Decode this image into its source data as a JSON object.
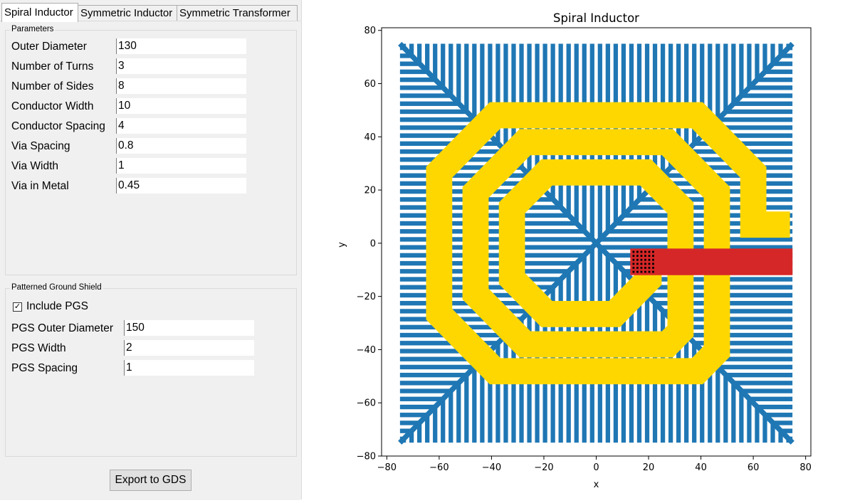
{
  "tabs": [
    {
      "label": "Spiral Inductor",
      "active": true
    },
    {
      "label": "Symmetric Inductor",
      "active": false
    },
    {
      "label": "Symmetric Transformer",
      "active": false
    }
  ],
  "parameters": {
    "title": "Parameters",
    "fields": [
      {
        "label": "Outer Diameter",
        "value": "130"
      },
      {
        "label": "Number of Turns",
        "value": "3"
      },
      {
        "label": "Number of Sides",
        "value": "8"
      },
      {
        "label": "Conductor Width",
        "value": "10"
      },
      {
        "label": "Conductor Spacing",
        "value": "4"
      },
      {
        "label": "Via Spacing",
        "value": "0.8"
      },
      {
        "label": "Via Width",
        "value": "1"
      },
      {
        "label": "Via in Metal",
        "value": "0.45"
      }
    ]
  },
  "pgs": {
    "title": "Patterned Ground Shield",
    "include_label": "Include PGS",
    "include_checked": true,
    "fields": [
      {
        "label": "PGS Outer Diameter",
        "value": "150"
      },
      {
        "label": "PGS Width",
        "value": "2"
      },
      {
        "label": "PGS Spacing",
        "value": "1"
      }
    ]
  },
  "export_button": "Export to GDS",
  "chart_data": {
    "type": "geometry-plot",
    "title": "Spiral Inductor",
    "xlabel": "x",
    "ylabel": "y",
    "xlim": [
      -82,
      82
    ],
    "ylim": [
      -80,
      81
    ],
    "xticks": [
      -80,
      -60,
      -40,
      -20,
      0,
      20,
      40,
      60,
      80
    ],
    "yticks": [
      -80,
      -60,
      -40,
      -20,
      0,
      20,
      40,
      60,
      80
    ],
    "pgs": {
      "outer_size": 150,
      "strip_width": 2,
      "strip_spacing": 1,
      "color": "#1f77b4"
    },
    "spiral": {
      "color": "#ffd700",
      "width": 10,
      "path": [
        [
          74,
          7
        ],
        [
          60,
          7
        ],
        [
          60,
          26.7
        ],
        [
          38.6,
          48.1
        ],
        [
          -38.6,
          48.1
        ],
        [
          -60,
          26.7
        ],
        [
          -60,
          -26.7
        ],
        [
          -38.6,
          -48.1
        ],
        [
          38.6,
          -48.1
        ],
        [
          46.1,
          -40.6
        ],
        [
          46.1,
          19.1
        ],
        [
          27.2,
          38
        ],
        [
          -27.2,
          38
        ],
        [
          -46.1,
          19.1
        ],
        [
          -46.1,
          -19.1
        ],
        [
          -27.2,
          -38
        ],
        [
          27.2,
          -38
        ],
        [
          32.2,
          -33
        ],
        [
          32.2,
          13.3
        ],
        [
          18.9,
          26.6
        ],
        [
          -18.9,
          26.6
        ],
        [
          -32.2,
          13.3
        ],
        [
          -32.2,
          -13.3
        ],
        [
          -18.9,
          -26.6
        ],
        [
          7,
          -26.6
        ],
        [
          20,
          -13.6
        ],
        [
          20,
          -4
        ]
      ]
    },
    "underpass": {
      "color": "#d62728",
      "x": [
        13,
        75
      ],
      "y": [
        -12,
        -2
      ]
    },
    "via_array": {
      "color": "#000000",
      "x": [
        13.5,
        22.5
      ],
      "y": [
        -11.5,
        -2.5
      ],
      "rows": 6,
      "cols": 6
    }
  }
}
